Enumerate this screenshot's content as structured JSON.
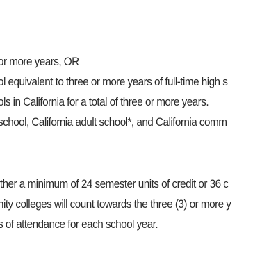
{
  "document": {
    "paragraph_1": [
      "or more years, OR",
      "ol equivalent to three or more years of full-time high s",
      "ols in California for a total of three or more years.",
      "school, California adult school*, and California comm"
    ],
    "paragraph_2": [
      "ither a minimum of 24 semester units of credit or 36 c",
      "nity colleges will count towards the three (3) or more y",
      "s of attendance for each school year."
    ]
  }
}
